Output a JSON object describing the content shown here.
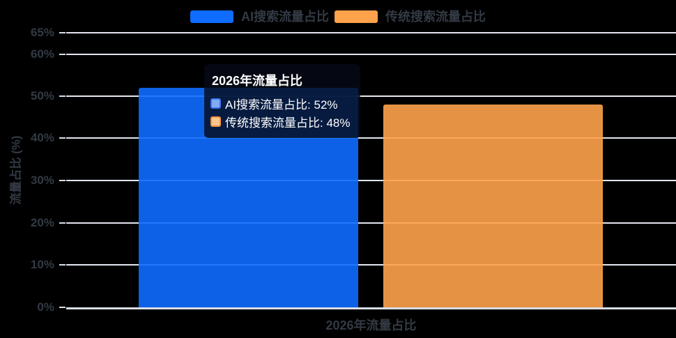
{
  "chart": {
    "background": "#000000",
    "grid_color": "#E3E7EF",
    "axis_line_color": "#D9DDE5",
    "text_color": "#333A44",
    "accent_blue": "#0E6CFF",
    "accent_orange": "#FFA24C"
  },
  "legend": {
    "items": [
      {
        "label": "AI搜索流量占比",
        "color": "#0E6CFF"
      },
      {
        "label": "传统搜索流量占比",
        "color": "#FFA24C"
      }
    ]
  },
  "y_axis": {
    "name": "流量占比 (%)",
    "tick_labels": [
      "65%",
      "60%",
      "50%",
      "40%",
      "30%",
      "20%",
      "10%",
      "0%"
    ]
  },
  "x_axis": {
    "label": "2026年流量占比"
  },
  "tooltip": {
    "title": "2026年流量占比",
    "rows": [
      {
        "text": "AI搜索流量占比: 52%",
        "swatch_fill": "#82ABF5",
        "swatch_border": "#3D74EE"
      },
      {
        "text": "传统搜索流量占比: 48%",
        "swatch_fill": "#FCC68D",
        "swatch_border": "#F6953C"
      }
    ]
  },
  "chart_data": {
    "type": "bar",
    "categories": [
      "2026年流量占比"
    ],
    "series": [
      {
        "name": "AI搜索流量占比",
        "values": [
          52
        ],
        "color": "#0E6CFF"
      },
      {
        "name": "传统搜索流量占比",
        "values": [
          48
        ],
        "color": "#FFA24C"
      }
    ],
    "title": "",
    "xlabel": "2026年流量占比",
    "ylabel": "流量占比 (%)",
    "ylim": [
      0,
      65
    ],
    "yticks": [
      0,
      10,
      20,
      30,
      40,
      50,
      60,
      65
    ],
    "grid": true,
    "legend_position": "top"
  }
}
